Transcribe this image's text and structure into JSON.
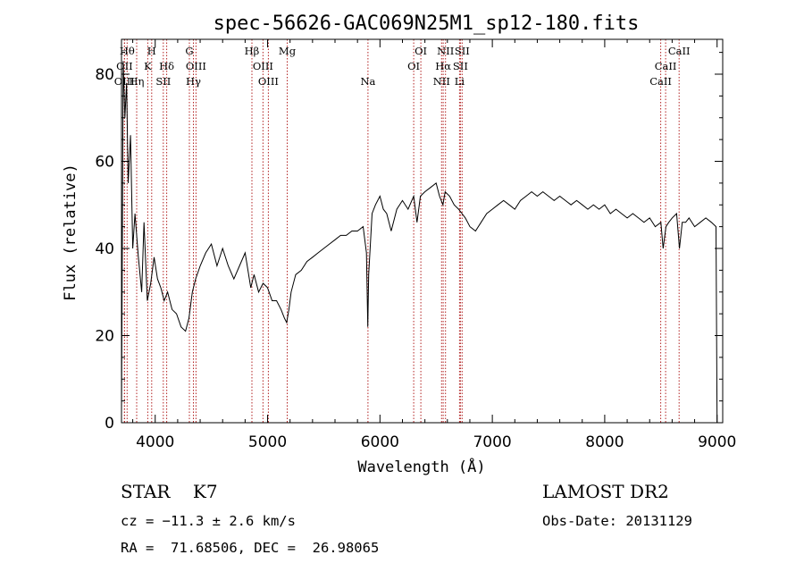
{
  "footer": {
    "object_class": "STAR",
    "subclass": "K7",
    "cz_text": "cz = −11.3 ± 2.6 km/s",
    "radec_text": "RA =  71.68506, DEC =  26.98065",
    "survey": "LAMOST DR2",
    "obs_date": "Obs-Date: 20131129"
  },
  "colors": {
    "line_markers": "#b22222",
    "spectrum": "#000000",
    "axes": "#000000"
  },
  "chart_data": {
    "type": "line",
    "title": "spec-56626-GAC069N25M1_sp12-180.fits",
    "xlabel": "Wavelength (Å)",
    "ylabel": "Flux (relative)",
    "xlim": [
      3700,
      9050
    ],
    "ylim": [
      0,
      88
    ],
    "x_ticks": [
      4000,
      5000,
      6000,
      7000,
      8000,
      9000
    ],
    "y_ticks": [
      0,
      20,
      40,
      60,
      80
    ],
    "grid": false,
    "legend": "none",
    "spectrum": {
      "x": [
        3700,
        3715,
        3730,
        3745,
        3760,
        3780,
        3800,
        3820,
        3850,
        3880,
        3900,
        3930,
        3960,
        3990,
        4020,
        4050,
        4080,
        4110,
        4150,
        4190,
        4230,
        4270,
        4300,
        4330,
        4360,
        4400,
        4450,
        4500,
        4550,
        4600,
        4650,
        4700,
        4750,
        4800,
        4850,
        4880,
        4920,
        4960,
        5000,
        5040,
        5080,
        5120,
        5150,
        5170,
        5190,
        5210,
        5250,
        5300,
        5350,
        5400,
        5450,
        5500,
        5550,
        5600,
        5650,
        5700,
        5750,
        5800,
        5850,
        5880,
        5892,
        5900,
        5930,
        5960,
        6000,
        6030,
        6060,
        6100,
        6150,
        6200,
        6250,
        6300,
        6330,
        6360,
        6400,
        6450,
        6500,
        6530,
        6560,
        6580,
        6620,
        6660,
        6700,
        6730,
        6760,
        6800,
        6850,
        6900,
        6950,
        7000,
        7050,
        7100,
        7150,
        7200,
        7250,
        7300,
        7350,
        7400,
        7450,
        7500,
        7550,
        7600,
        7650,
        7700,
        7750,
        7800,
        7850,
        7900,
        7950,
        8000,
        8050,
        8100,
        8150,
        8200,
        8250,
        8300,
        8350,
        8400,
        8450,
        8500,
        8520,
        8545,
        8570,
        8600,
        8640,
        8665,
        8690,
        8720,
        8750,
        8800,
        8850,
        8900,
        8950,
        8990,
        9000
      ],
      "y": [
        2,
        83,
        70,
        78,
        55,
        66,
        40,
        48,
        38,
        30,
        46,
        28,
        32,
        38,
        33,
        31,
        28,
        30,
        26,
        25,
        22,
        21,
        24,
        30,
        33,
        36,
        39,
        41,
        36,
        40,
        36,
        33,
        36,
        39,
        31,
        34,
        30,
        32,
        31,
        28,
        28,
        26,
        24,
        23,
        26,
        30,
        34,
        35,
        37,
        38,
        39,
        40,
        41,
        42,
        43,
        43,
        44,
        44,
        45,
        39,
        22,
        34,
        48,
        50,
        52,
        49,
        48,
        44,
        49,
        51,
        49,
        52,
        46,
        52,
        53,
        54,
        55,
        52,
        50,
        53,
        52,
        50,
        49,
        48,
        47,
        45,
        44,
        46,
        48,
        49,
        50,
        51,
        50,
        49,
        51,
        52,
        53,
        52,
        53,
        52,
        51,
        52,
        51,
        50,
        51,
        50,
        49,
        50,
        49,
        50,
        48,
        49,
        48,
        47,
        48,
        47,
        46,
        47,
        45,
        46,
        40,
        45,
        46,
        47,
        48,
        40,
        46,
        46,
        47,
        45,
        46,
        47,
        46,
        45,
        0
      ]
    },
    "line_markers": [
      {
        "x": 3750,
        "label": "Hθ",
        "row": 0
      },
      {
        "x": 3727,
        "label": "OII",
        "row": 1
      },
      {
        "x": 3726,
        "label": "OIII",
        "row": 2
      },
      {
        "x": 3835,
        "label": "Hη",
        "row": 2
      },
      {
        "x": 3934,
        "label": "K",
        "row": 1
      },
      {
        "x": 3969,
        "label": "H",
        "row": 0
      },
      {
        "x": 4102,
        "label": "Hδ",
        "row": 1
      },
      {
        "x": 4072,
        "label": "SII",
        "row": 2
      },
      {
        "x": 4304,
        "label": "G",
        "row": 0
      },
      {
        "x": 4340,
        "label": "Hγ",
        "row": 2
      },
      {
        "x": 4363,
        "label": "OIII",
        "row": 1
      },
      {
        "x": 4861,
        "label": "Hβ",
        "row": 0
      },
      {
        "x": 4959,
        "label": "OIII",
        "row": 1
      },
      {
        "x": 5007,
        "label": "OIII",
        "row": 2
      },
      {
        "x": 5175,
        "label": "Mg",
        "row": 0
      },
      {
        "x": 5893,
        "label": "Na",
        "row": 2
      },
      {
        "x": 6300,
        "label": "OI",
        "row": 1
      },
      {
        "x": 6364,
        "label": "OI",
        "row": 0
      },
      {
        "x": 6548,
        "label": "NII",
        "row": 2
      },
      {
        "x": 6563,
        "label": "Hα",
        "row": 1
      },
      {
        "x": 6583,
        "label": "NII",
        "row": 0
      },
      {
        "x": 6708,
        "label": "Li",
        "row": 2
      },
      {
        "x": 6716,
        "label": "SII",
        "row": 1
      },
      {
        "x": 6731,
        "label": "SII",
        "row": 0
      },
      {
        "x": 8498,
        "label": "CaII",
        "row": 2
      },
      {
        "x": 8542,
        "label": "CaII",
        "row": 1
      },
      {
        "x": 8662,
        "label": "CaII",
        "row": 0
      }
    ]
  }
}
